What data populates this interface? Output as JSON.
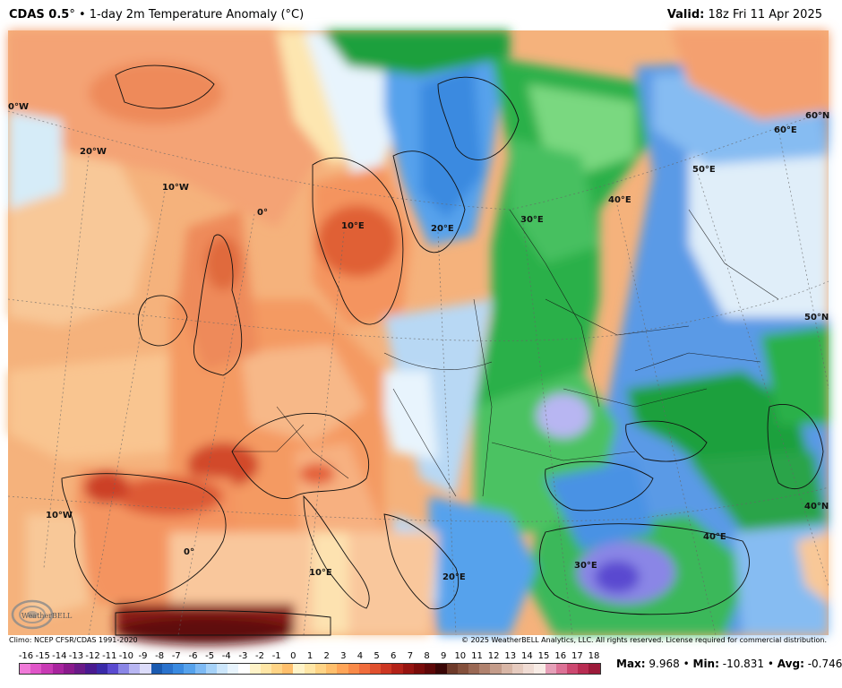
{
  "header": {
    "model": "CDAS 0.5",
    "degree": "°",
    "bullet": "•",
    "product": "1-day 2m Temperature Anomaly (°C)",
    "valid_label": "Valid:",
    "valid_value": "18z Fri 11 Apr 2025"
  },
  "map": {
    "labels": [
      {
        "id": "lon-0w",
        "text": "0°W"
      },
      {
        "id": "lon-20w",
        "text": "20°W"
      },
      {
        "id": "lon-10w-north",
        "text": "10°W"
      },
      {
        "id": "lon-0-north",
        "text": "0°"
      },
      {
        "id": "lon-10e-north",
        "text": "10°E"
      },
      {
        "id": "lon-20e-north",
        "text": "20°E"
      },
      {
        "id": "lon-30e-north",
        "text": "30°E"
      },
      {
        "id": "lon-40e-north",
        "text": "40°E"
      },
      {
        "id": "lon-50e",
        "text": "50°E"
      },
      {
        "id": "lon-60e",
        "text": "60°E"
      },
      {
        "id": "lat-60n",
        "text": "60°N"
      },
      {
        "id": "lat-50n",
        "text": "50°N"
      },
      {
        "id": "lat-40n",
        "text": "40°N"
      },
      {
        "id": "lon-10w-south",
        "text": "10°W"
      },
      {
        "id": "lon-0-south",
        "text": "0°"
      },
      {
        "id": "lon-10e-south",
        "text": "10°E"
      },
      {
        "id": "lon-20e-south",
        "text": "20°E"
      },
      {
        "id": "lon-30e-south",
        "text": "30°E"
      },
      {
        "id": "lon-40e-south",
        "text": "40°E"
      }
    ]
  },
  "logo": {
    "text": "WeatherBELL"
  },
  "footer": {
    "climo": "Climo: NCEP CFSR/CDAS 1991-2020",
    "copyright": "© 2025 WeatherBELL Analytics, LLC. All rights reserved. License required for commercial distribution."
  },
  "colorbar": {
    "labels": [
      "-16",
      "-15",
      "-14",
      "-13",
      "-12",
      "-11",
      "-10",
      "-9",
      "-8",
      "-7",
      "-6",
      "-5",
      "-4",
      "-3",
      "-2",
      "-1",
      "0",
      "1",
      "2",
      "3",
      "4",
      "5",
      "6",
      "7",
      "8",
      "9",
      "10",
      "11",
      "12",
      "13",
      "14",
      "15",
      "16",
      "17",
      "18"
    ],
    "colors": [
      "#f07ad8",
      "#e055c8",
      "#c83ab4",
      "#a8249e",
      "#8a1a8c",
      "#6a1a88",
      "#4a1a90",
      "#3a2aa8",
      "#5a4ad0",
      "#8a86e6",
      "#b8b6f2",
      "#dcdcfa",
      "#1a5ab0",
      "#2a72cc",
      "#3a8ae0",
      "#56a2ec",
      "#7ebaf4",
      "#a6d2f8",
      "#cce6fb",
      "#e8f4fd",
      "#ffffff",
      "#fff3c8",
      "#ffe6a6",
      "#ffd486",
      "#ffbf6c",
      "#ffa558",
      "#f98a48",
      "#f06c3c",
      "#e0502e",
      "#cc3622",
      "#b32218",
      "#961410",
      "#7a0c0a",
      "#5e0808",
      "#3a0606"
    ],
    "colors_upper": [
      "#6e3a2a",
      "#84503c",
      "#9a6854",
      "#b0826e",
      "#c49c8a",
      "#d8b6a6",
      "#e6cbbf",
      "#f0dcd4",
      "#f8ece6",
      "#e5a0b8",
      "#dc7296",
      "#cc4870",
      "#b82c52",
      "#9c1a3a"
    ]
  },
  "stats": {
    "max_label": "Max:",
    "max_value": "9.968",
    "min_label": "Min:",
    "min_value": "-10.831",
    "avg_label": "Avg:",
    "avg_value": "-0.746",
    "sep": "•"
  }
}
